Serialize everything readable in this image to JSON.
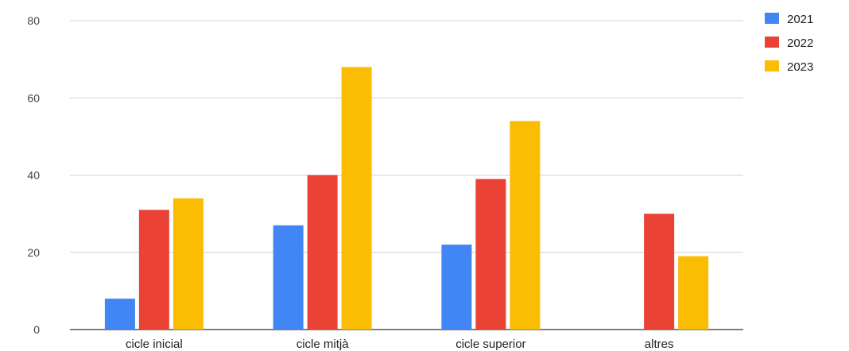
{
  "chart_data": {
    "type": "bar",
    "title": "",
    "xlabel": "",
    "ylabel": "",
    "categories": [
      "cicle inicial",
      "cicle mitjà",
      "cicle superior",
      "altres"
    ],
    "series": [
      {
        "name": "2021",
        "color": "#4285f4",
        "values": [
          8,
          27,
          22,
          0
        ]
      },
      {
        "name": "2022",
        "color": "#ea4335",
        "values": [
          31,
          40,
          39,
          30
        ]
      },
      {
        "name": "2023",
        "color": "#fbbc04",
        "values": [
          34,
          68,
          54,
          19
        ]
      }
    ],
    "ylim": [
      0,
      80
    ],
    "yticks": [
      0,
      20,
      40,
      60,
      80
    ],
    "grid": true,
    "legend_position": "top-right"
  }
}
